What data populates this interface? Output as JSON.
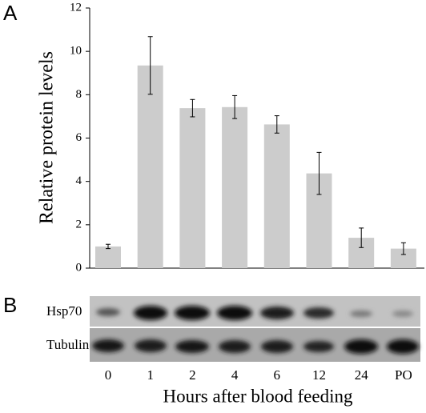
{
  "chart_data": {
    "type": "bar",
    "panel_labels": [
      "A",
      "B"
    ],
    "ylabel": "Relative protein levels",
    "xlabel": "Hours after blood feeding",
    "categories": [
      "0",
      "1",
      "2",
      "4",
      "6",
      "12",
      "24",
      "PO"
    ],
    "values": [
      1.0,
      9.35,
      7.38,
      7.43,
      6.63,
      4.37,
      1.4,
      0.9
    ],
    "errors": [
      0.1,
      1.33,
      0.4,
      0.53,
      0.4,
      0.97,
      0.45,
      0.27
    ],
    "color": "#cccccc",
    "ylim": [
      0,
      12
    ],
    "yticks": [
      0,
      2,
      4,
      6,
      8,
      10,
      12
    ],
    "blot_rows": [
      "Hsp70",
      "Tubulin"
    ]
  }
}
